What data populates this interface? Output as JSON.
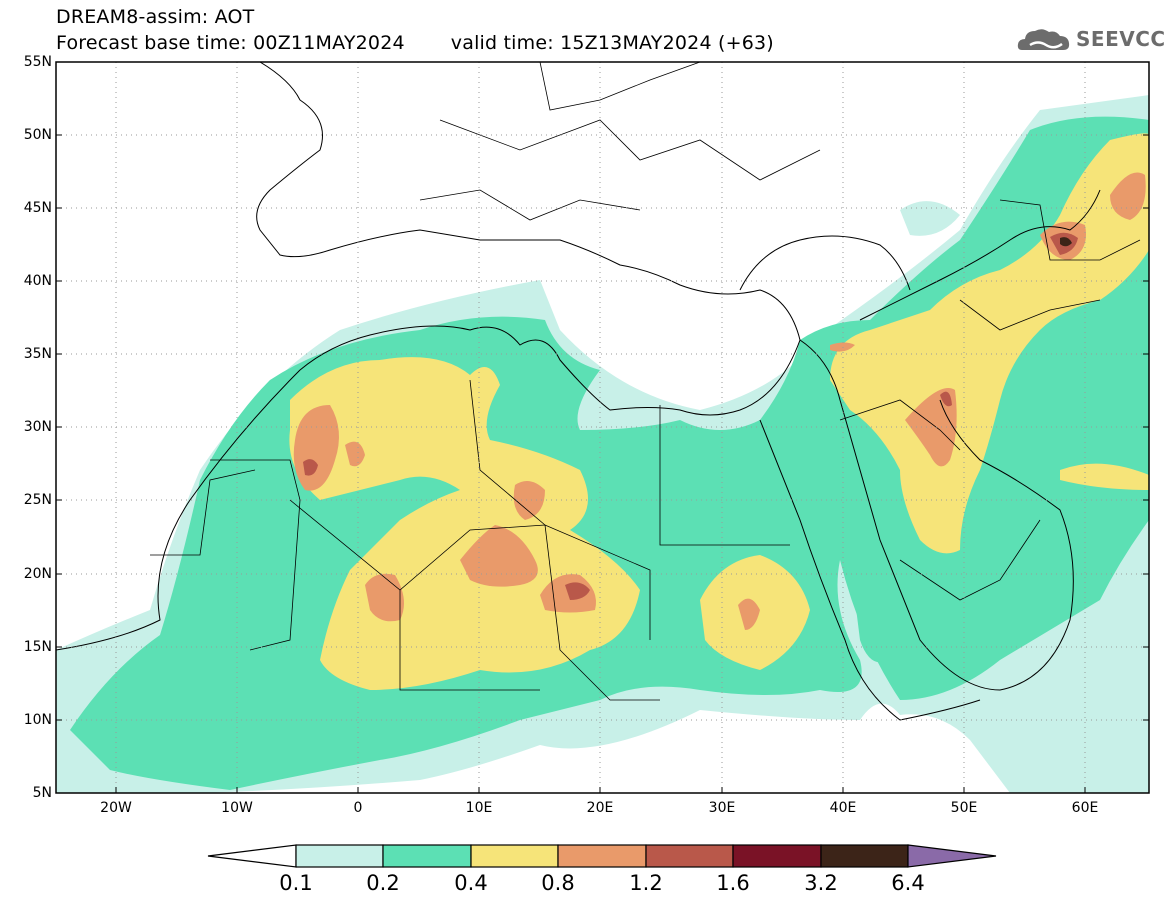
{
  "header": {
    "title": "DREAM8-assim: AOT",
    "base_label": "Forecast base time: 00Z11MAY2024",
    "valid_label": "valid time: 15Z13MAY2024 (+63)"
  },
  "logo": {
    "text": "SEEVCCC",
    "icon": "cloud-icon"
  },
  "map": {
    "lon_range": [
      -25,
      65
    ],
    "lat_range": [
      5,
      55
    ],
    "lat_ticks": [
      "55N",
      "50N",
      "45N",
      "40N",
      "35N",
      "30N",
      "25N",
      "20N",
      "15N",
      "10N",
      "5N"
    ],
    "lon_ticks": [
      "20W",
      "10W",
      "0",
      "10E",
      "20E",
      "30E",
      "40E",
      "50E",
      "60E"
    ],
    "grid": "dotted"
  },
  "colorbar": {
    "labels": [
      "0.1",
      "0.2",
      "0.4",
      "0.8",
      "1.2",
      "1.6",
      "3.2",
      "6.4"
    ],
    "colors": [
      "#c8f0e8",
      "#5ce0b4",
      "#f6e479",
      "#e99a6a",
      "#b9584a",
      "#7a1226",
      "#3c2418"
    ],
    "low_arrow_color": "#ffffff",
    "high_arrow_color": "#8a6aa8"
  }
}
